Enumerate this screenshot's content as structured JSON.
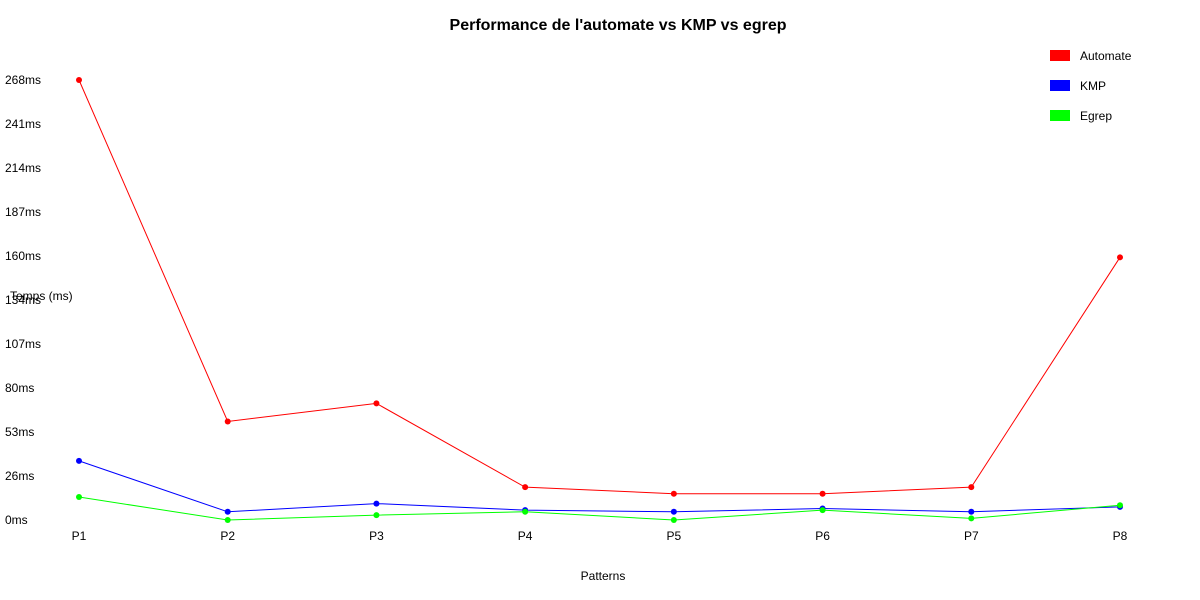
{
  "chart_data": {
    "type": "line",
    "title": "Performance de l'automate vs KMP vs egrep",
    "xlabel": "Patterns",
    "ylabel": "Temps (ms)",
    "categories": [
      "P1",
      "P2",
      "P3",
      "P4",
      "P5",
      "P6",
      "P7",
      "P8"
    ],
    "y_ticks": [
      "0ms",
      "26ms",
      "53ms",
      "80ms",
      "107ms",
      "134ms",
      "160ms",
      "187ms",
      "214ms",
      "241ms",
      "268ms"
    ],
    "ylim": [
      0,
      268
    ],
    "grid": false,
    "legend_position": "top-right",
    "series": [
      {
        "name": "Automate",
        "color": "#ff0000",
        "values": [
          268,
          60,
          71,
          20,
          16,
          16,
          20,
          160
        ]
      },
      {
        "name": "KMP",
        "color": "#0000ff",
        "values": [
          36,
          5,
          10,
          6,
          5,
          7,
          5,
          8
        ]
      },
      {
        "name": "Egrep",
        "color": "#00ff00",
        "values": [
          14,
          0,
          3,
          5,
          0,
          6,
          1,
          9
        ]
      }
    ]
  }
}
